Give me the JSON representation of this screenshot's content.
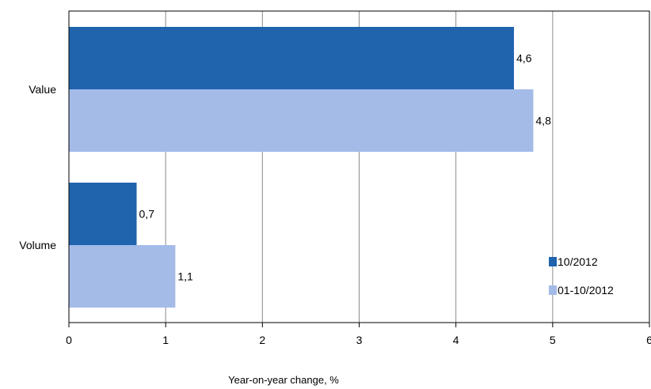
{
  "chart_data": {
    "type": "bar",
    "orientation": "horizontal",
    "categories": [
      "Value",
      "Volume"
    ],
    "series": [
      {
        "name": "10/2012",
        "values": [
          4.6,
          0.7
        ],
        "labels": [
          "4,6",
          "0,7"
        ],
        "color": "#1f64ad"
      },
      {
        "name": "01-10/2012",
        "values": [
          4.8,
          1.1
        ],
        "labels": [
          "4,8",
          "1,1"
        ],
        "color": "#a4bbe8"
      }
    ],
    "xlabel": "Year-on-year change, %",
    "ylabel": "",
    "xlim": [
      0,
      6
    ],
    "ticks": [
      "0",
      "1",
      "2",
      "3",
      "4",
      "5",
      "6"
    ],
    "grid": true,
    "legend_position": "bottom-right"
  }
}
